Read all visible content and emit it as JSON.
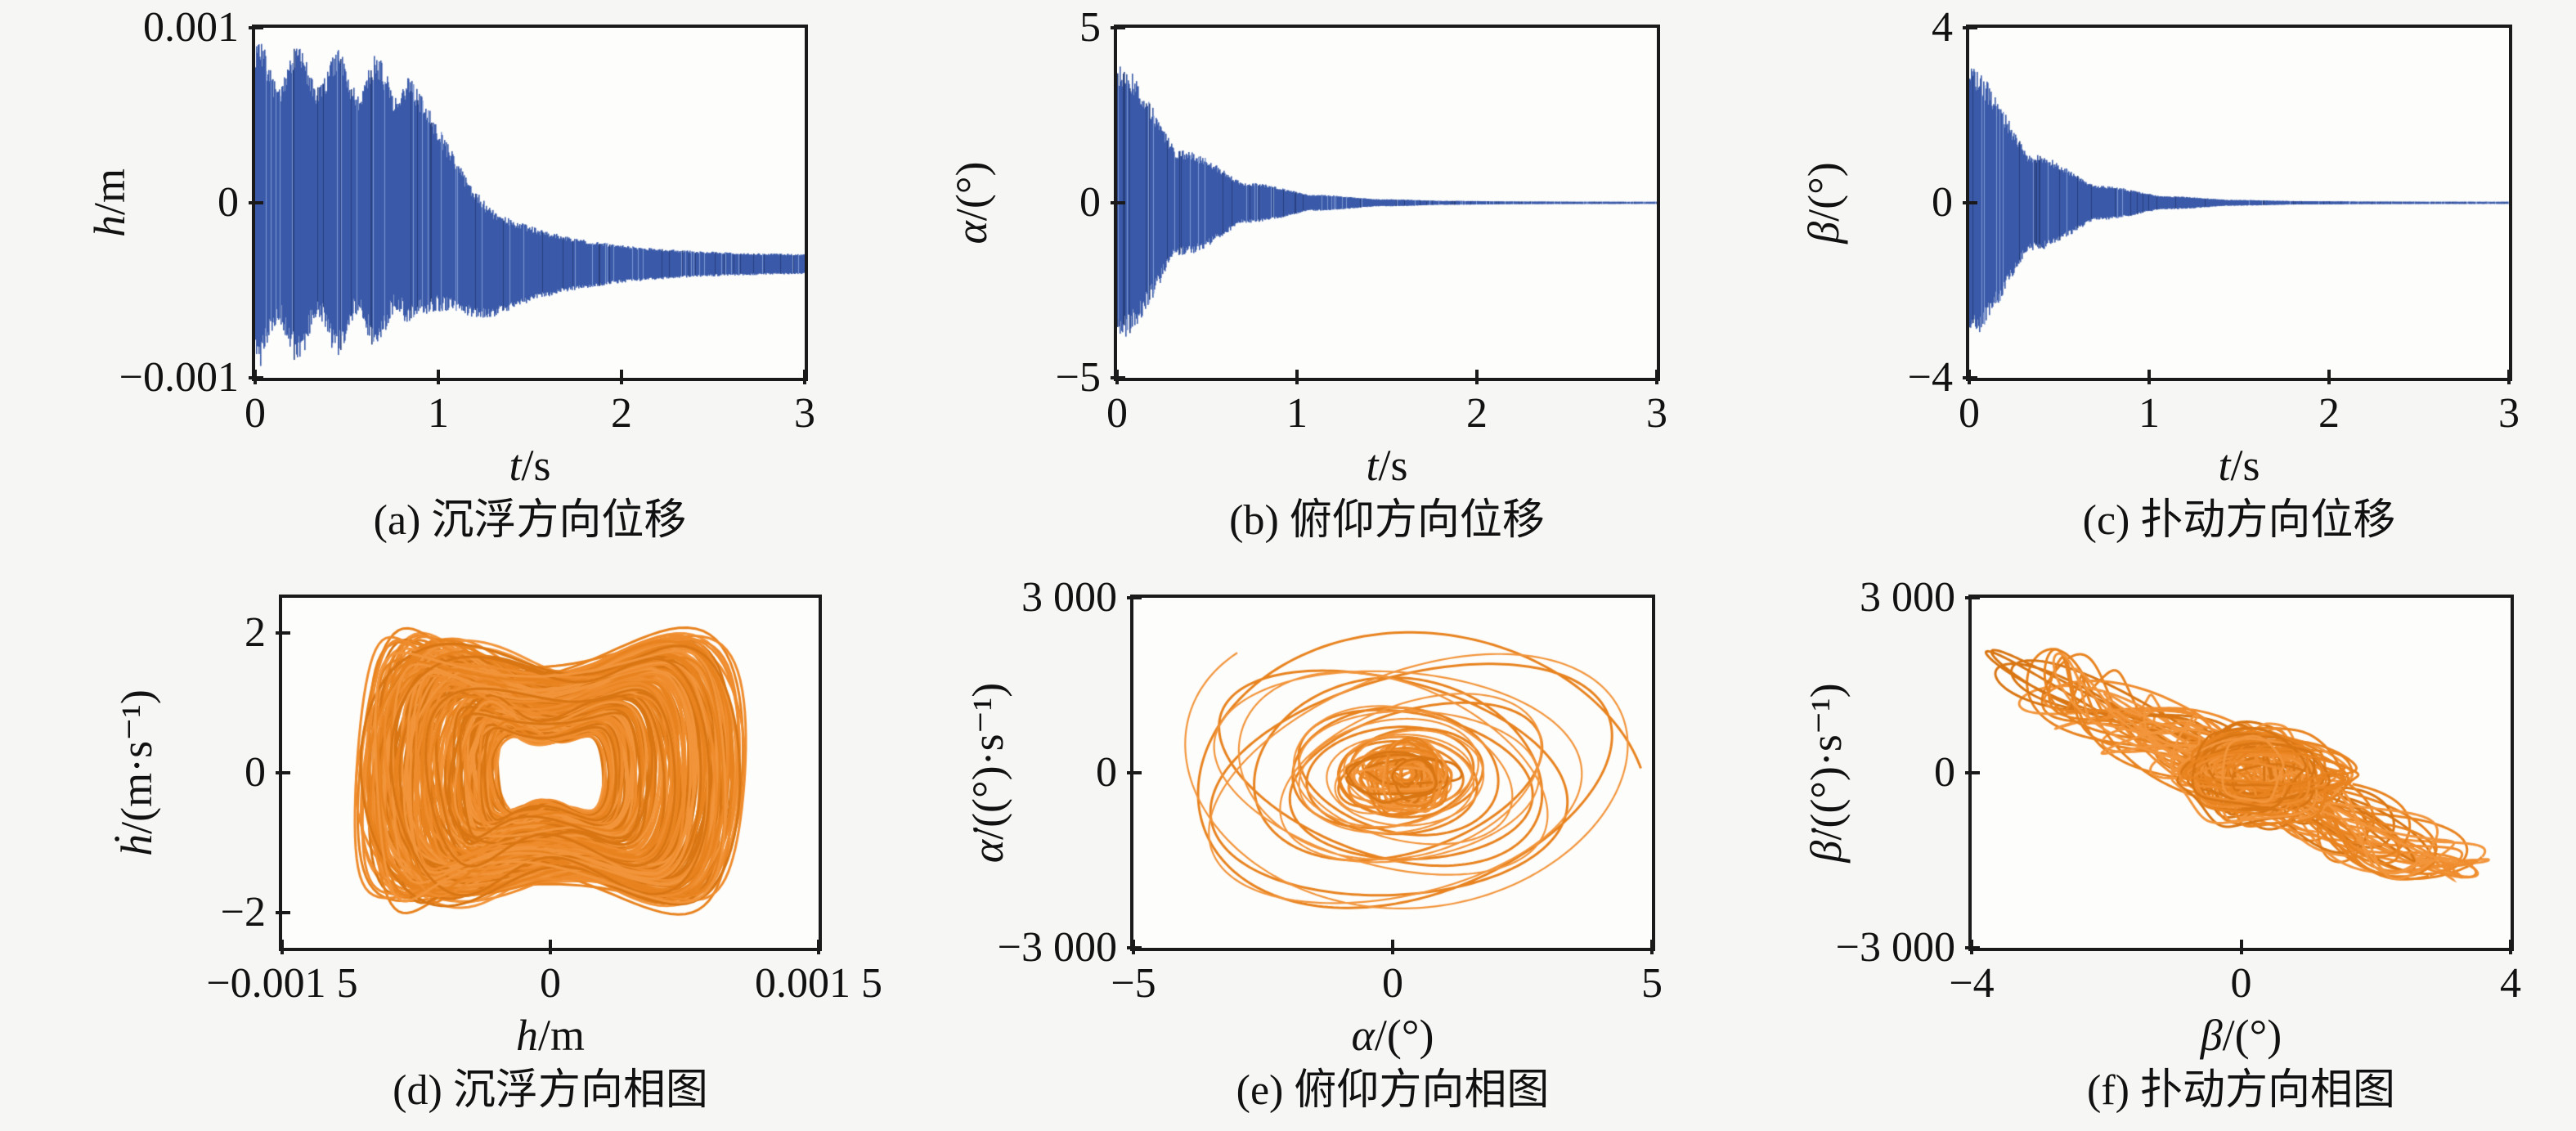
{
  "figure": {
    "background": "#f6f6f4",
    "plot_background": "#fdfdfc",
    "frame_color": "#1a1a1a",
    "series_blue": "#3a5aa9",
    "series_orange": "#e8831f"
  },
  "chart_data": {
    "charts": [
      {
        "id": "a",
        "type": "line",
        "caption": "(a) 沉浮方向位移",
        "xlabel_var": "t",
        "xlabel_rest": "/s",
        "ylabel_var": "h",
        "ylabel_rest": "/m",
        "xlim": [
          0,
          3
        ],
        "ylim": [
          -0.001,
          0.001
        ],
        "xticks": [
          {
            "v": 0,
            "label": "0"
          },
          {
            "v": 1,
            "label": "1"
          },
          {
            "v": 2,
            "label": "2"
          },
          {
            "v": 3,
            "label": "3"
          }
        ],
        "yticks": [
          {
            "v": 0.001,
            "label": "0.001"
          },
          {
            "v": 0,
            "label": "0"
          },
          {
            "v": -0.001,
            "label": "−0.001"
          }
        ],
        "color": "#3a5aa9",
        "palette": [
          "#3a5aa9",
          "#7d97d2",
          "#27407e"
        ],
        "seed": 7,
        "renderer": {
          "kind": "burst",
          "amp": 0.00095,
          "burst_end": 0.83,
          "decay": 2.1,
          "tail": 5e-05,
          "settle": -0.00035,
          "settle_ramp": 0.5
        },
        "data_summary": {
          "t": [
            0,
            0.2,
            0.4,
            0.6,
            0.8,
            0.9,
            1.0,
            1.2,
            1.5,
            2.0,
            2.5,
            3.0
          ],
          "upper_envelope": [
            0.001,
            0.00095,
            0.0009,
            0.00088,
            0.00085,
            0.0006,
            0.0004,
            5e-05,
            -0.0001,
            -0.00022,
            -0.00027,
            -0.0003
          ],
          "lower_envelope": [
            -0.001,
            -0.00095,
            -0.00092,
            -0.0009,
            -0.00088,
            -0.0008,
            -0.00075,
            -0.0006,
            -0.00058,
            -0.00048,
            -0.00042,
            -0.0004
          ],
          "settles_to": -0.00035
        }
      },
      {
        "id": "b",
        "type": "line",
        "caption": "(b) 俯仰方向位移",
        "xlabel_var": "t",
        "xlabel_rest": "/s",
        "ylabel_var": "α",
        "ylabel_rest": "/(°)",
        "xlim": [
          0,
          3
        ],
        "ylim": [
          -5,
          5
        ],
        "xticks": [
          {
            "v": 0,
            "label": "0"
          },
          {
            "v": 1,
            "label": "1"
          },
          {
            "v": 2,
            "label": "2"
          },
          {
            "v": 3,
            "label": "3"
          }
        ],
        "yticks": [
          {
            "v": 5,
            "label": "5"
          },
          {
            "v": 0,
            "label": "0"
          },
          {
            "v": -5,
            "label": "−5"
          }
        ],
        "color": "#3a5aa9",
        "palette": [
          "#3a5aa9",
          "#7d97d2",
          "#27407e"
        ],
        "seed": 13,
        "renderer": {
          "kind": "decay",
          "amp": 4.7,
          "decay": 2.7,
          "tail": 0.03
        },
        "data_summary": {
          "t": [
            0,
            0.2,
            0.4,
            0.6,
            0.8,
            1.0,
            1.5,
            2.0,
            3.0
          ],
          "upper_envelope": [
            4.6,
            2.7,
            1.6,
            0.95,
            0.55,
            0.33,
            0.08,
            0.02,
            0.005
          ],
          "lower_envelope": [
            -4.6,
            -2.7,
            -1.6,
            -0.95,
            -0.55,
            -0.33,
            -0.08,
            -0.02,
            -0.005
          ],
          "settles_to": 0
        }
      },
      {
        "id": "c",
        "type": "line",
        "caption": "(c) 扑动方向位移",
        "xlabel_var": "t",
        "xlabel_rest": "/s",
        "ylabel_var": "β",
        "ylabel_rest": "/(°)",
        "xlim": [
          0,
          3
        ],
        "ylim": [
          -4,
          4
        ],
        "xticks": [
          {
            "v": 0,
            "label": "0"
          },
          {
            "v": 1,
            "label": "1"
          },
          {
            "v": 2,
            "label": "2"
          },
          {
            "v": 3,
            "label": "3"
          }
        ],
        "yticks": [
          {
            "v": 4,
            "label": "4"
          },
          {
            "v": 0,
            "label": "0"
          },
          {
            "v": -4,
            "label": "−4"
          }
        ],
        "color": "#3a5aa9",
        "palette": [
          "#3a5aa9",
          "#7d97d2",
          "#27407e"
        ],
        "seed": 21,
        "renderer": {
          "kind": "decay",
          "amp": 3.7,
          "decay": 2.9,
          "tail": 0.025
        },
        "data_summary": {
          "t": [
            0,
            0.2,
            0.4,
            0.6,
            0.8,
            1.0,
            1.5,
            2.0,
            3.0
          ],
          "upper_envelope": [
            3.6,
            2.0,
            1.15,
            0.65,
            0.37,
            0.27,
            0.05,
            0.015,
            0.004
          ],
          "lower_envelope": [
            -3.6,
            -2.0,
            -1.15,
            -0.65,
            -0.37,
            -0.27,
            -0.05,
            -0.015,
            -0.004
          ],
          "settles_to": 0
        }
      },
      {
        "id": "d",
        "type": "line",
        "caption": "(d) 沉浮方向相图",
        "xlabel_var": "h",
        "xlabel_rest": "/m",
        "ylabel_var": "ḣ",
        "ylabel_rest": "/(m·s⁻¹)",
        "xlim": [
          -0.0015,
          0.0015
        ],
        "ylim": [
          -2.5,
          2.5
        ],
        "xticks": [
          {
            "v": -0.0015,
            "label": "−0.001 5"
          },
          {
            "v": 0,
            "label": "0"
          },
          {
            "v": 0.0015,
            "label": "0.001 5"
          }
        ],
        "yticks": [
          {
            "v": 2,
            "label": "2"
          },
          {
            "v": 0,
            "label": "0"
          },
          {
            "v": -2,
            "label": "−2"
          }
        ],
        "color": "#e8831f",
        "palette": [
          "#e8831f",
          "#f2953b",
          "#d97613",
          "#ef8c2d"
        ],
        "seed": 34,
        "renderer": {
          "kind": "bowtie",
          "x_amp": 0.00105,
          "y_amp": 2.05,
          "dimple": 0.3,
          "loops": 230
        },
        "data_summary": {
          "x_extent": [
            -0.00105,
            0.00095
          ],
          "y_extent": [
            -2.2,
            2.2
          ],
          "shape": "dense dog-bone shaped phase orbit band centered at origin"
        }
      },
      {
        "id": "e",
        "type": "line",
        "caption": "(e) 俯仰方向相图",
        "xlabel_var": "α",
        "xlabel_rest": "/(°)",
        "ylabel_var": "α̇",
        "ylabel_rest": "/((°)·s⁻¹)",
        "xlim": [
          -5,
          5
        ],
        "ylim": [
          -3000,
          3000
        ],
        "xticks": [
          {
            "v": -5,
            "label": "−5"
          },
          {
            "v": 0,
            "label": "0"
          },
          {
            "v": 5,
            "label": "5"
          }
        ],
        "yticks": [
          {
            "v": 3000,
            "label": "3 000"
          },
          {
            "v": 0,
            "label": "0"
          },
          {
            "v": -3000,
            "label": "−3 000"
          }
        ],
        "color": "#e8831f",
        "palette": [
          "#e8831f",
          "#f2953b",
          "#d97613",
          "#ef8c2d"
        ],
        "seed": 55,
        "renderer": {
          "kind": "spiral",
          "x_amp": 4.5,
          "y_amp": 2450,
          "turns": 21,
          "k": 0.022,
          "cx_drift": 0.3,
          "cy_drift": 150,
          "core_loops": 28
        },
        "data_summary": {
          "x_extent": [
            -4.4,
            4.8
          ],
          "y_extent": [
            -2600,
            2400
          ],
          "shape": "decaying elliptical spiral converging to a dense core near the origin"
        }
      },
      {
        "id": "f",
        "type": "line",
        "caption": "(f) 扑动方向相图",
        "xlabel_var": "β",
        "xlabel_rest": "/(°)",
        "ylabel_var": "β̇",
        "ylabel_rest": "/((°)·s⁻¹)",
        "xlim": [
          -4,
          4
        ],
        "ylim": [
          -3000,
          3000
        ],
        "xticks": [
          {
            "v": -4,
            "label": "−4"
          },
          {
            "v": 0,
            "label": "0"
          },
          {
            "v": 4,
            "label": "4"
          }
        ],
        "yticks": [
          {
            "v": 3000,
            "label": "3 000"
          },
          {
            "v": 0,
            "label": "0"
          },
          {
            "v": -3000,
            "label": "−3 000"
          }
        ],
        "color": "#e8831f",
        "palette": [
          "#e8831f",
          "#f2953b",
          "#d97613",
          "#ef8c2d"
        ],
        "seed": 89,
        "renderer": {
          "kind": "tangle",
          "t_end": 110,
          "x_terms": [
            [
              1.9,
              1.13,
              0
            ],
            [
              1.35,
              2.41,
              1.3
            ],
            [
              0.55,
              4.73,
              2.1
            ]
          ],
          "y_terms": [
            [
              1050,
              1.13,
              1.77
            ],
            [
              760,
              2.41,
              2.87
            ],
            [
              310,
              6.1,
              0.6
            ]
          ],
          "core_loops": 45,
          "core": {
            "cx": 0.25,
            "cy": 0,
            "x_amp": 1.25,
            "y_amp": 820
          }
        },
        "data_summary": {
          "x_extent": [
            -3.7,
            3.6
          ],
          "y_extent": [
            -2100,
            1900
          ],
          "shape": "irregular tangled phase orbits, dense core right of center, small loops at far left"
        }
      }
    ]
  }
}
